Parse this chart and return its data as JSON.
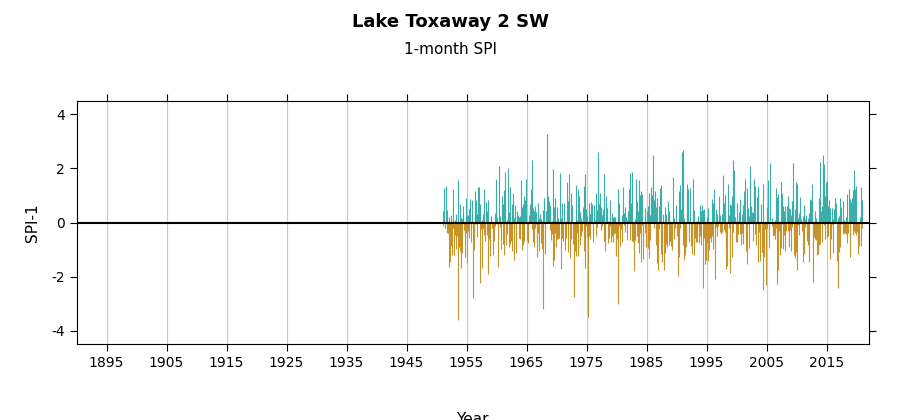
{
  "title": "Lake Toxaway 2 SW",
  "subtitle": "1-month SPI",
  "xlabel": "Year",
  "ylabel": "SPI-1",
  "xlim": [
    1890,
    2022
  ],
  "ylim": [
    -4.5,
    4.5
  ],
  "yticks": [
    -4,
    -2,
    0,
    2,
    4
  ],
  "xticks": [
    1895,
    1905,
    1915,
    1925,
    1935,
    1945,
    1955,
    1965,
    1975,
    1985,
    1995,
    2005,
    2015
  ],
  "data_start_year": 1951,
  "data_end_year": 2020,
  "color_positive": "#3AAFA9",
  "color_negative": "#C8922A",
  "background_color": "#FFFFFF",
  "grid_color": "#C8C8C8",
  "title_fontsize": 13,
  "subtitle_fontsize": 11,
  "axis_label_fontsize": 11,
  "tick_fontsize": 10,
  "seed": 42
}
